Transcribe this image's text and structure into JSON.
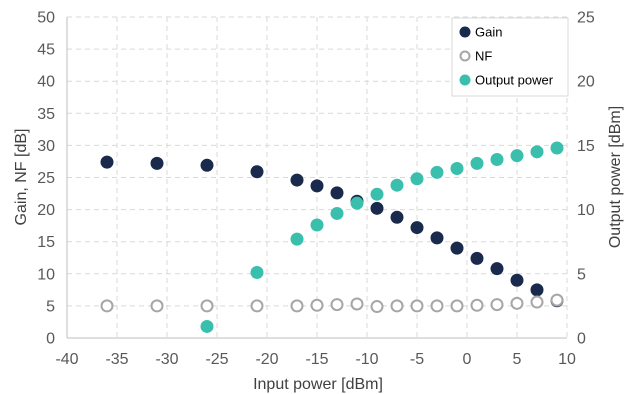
{
  "chart_data": {
    "type": "scatter",
    "xlabel": "Input power [dBm]",
    "ylabel": "Gain, NF [dB]",
    "y2label": "Output power [dBm]",
    "xlim": [
      -40,
      10
    ],
    "ylim": [
      0,
      50
    ],
    "y2lim": [
      0,
      25
    ],
    "x_ticks": [
      -40,
      -35,
      -30,
      -25,
      -20,
      -15,
      -10,
      -5,
      0,
      5,
      10
    ],
    "y_ticks": [
      0,
      5,
      10,
      15,
      20,
      25,
      30,
      35,
      40,
      45,
      50
    ],
    "y2_ticks": [
      0,
      5,
      10,
      15,
      20,
      25
    ],
    "grid": true,
    "legend_position": "top-right",
    "series": [
      {
        "name": "Gain",
        "axis": "left",
        "marker": "filled",
        "color": "#1a2a4d",
        "x": [
          -36,
          -31,
          -26,
          -21,
          -17,
          -15,
          -13,
          -11,
          -9,
          -7,
          -5,
          -3,
          -1,
          1,
          3,
          5,
          7,
          9
        ],
        "y": [
          27.4,
          27.2,
          26.9,
          25.9,
          24.6,
          23.7,
          22.6,
          21.3,
          20.2,
          18.8,
          17.2,
          15.6,
          14.0,
          12.4,
          10.8,
          9.0,
          7.5,
          5.8
        ]
      },
      {
        "name": "NF",
        "axis": "left",
        "marker": "open",
        "color": "#a6a6a6",
        "x": [
          -36,
          -31,
          -26,
          -21,
          -17,
          -15,
          -13,
          -11,
          -9,
          -7,
          -5,
          -3,
          -1,
          1,
          3,
          5,
          7,
          9
        ],
        "y": [
          5.0,
          5.0,
          5.0,
          5.0,
          5.0,
          5.1,
          5.2,
          5.3,
          4.9,
          5.0,
          5.0,
          5.0,
          5.0,
          5.1,
          5.2,
          5.4,
          5.6,
          5.9
        ]
      },
      {
        "name": "Output power",
        "axis": "right",
        "marker": "filled",
        "color": "#3bbfad",
        "x": [
          -26,
          -21,
          -17,
          -15,
          -13,
          -11,
          -9,
          -7,
          -5,
          -3,
          -1,
          1,
          3,
          5,
          7,
          9
        ],
        "y": [
          0.9,
          5.1,
          7.7,
          8.8,
          9.7,
          10.5,
          11.2,
          11.9,
          12.4,
          12.9,
          13.2,
          13.6,
          13.9,
          14.2,
          14.5,
          14.8
        ]
      }
    ]
  }
}
